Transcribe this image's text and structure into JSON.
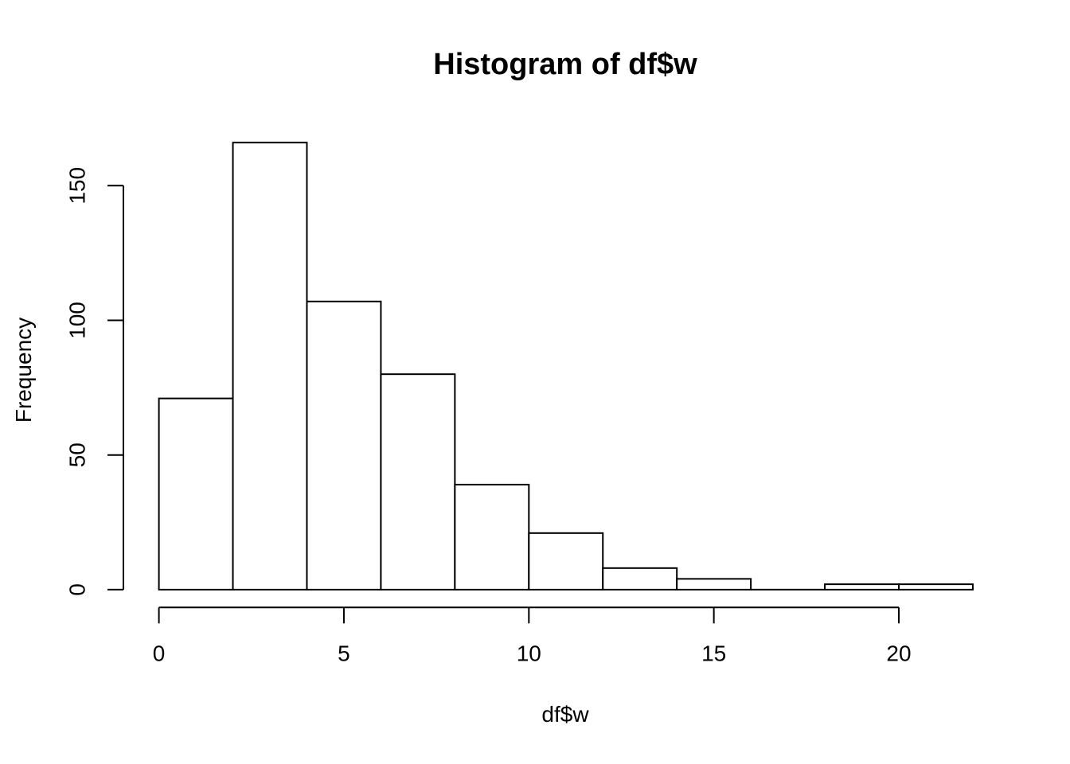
{
  "title": "Histogram of df$w",
  "chart_data": {
    "type": "bar",
    "subtype": "histogram",
    "title": "Histogram of df$w",
    "xlabel": "df$w",
    "ylabel": "Frequency",
    "bin_width": 2,
    "bin_edges": [
      0,
      2,
      4,
      6,
      8,
      10,
      12,
      14,
      16,
      18,
      20,
      22
    ],
    "categories": [
      "0-2",
      "2-4",
      "4-6",
      "6-8",
      "8-10",
      "10-12",
      "12-14",
      "14-16",
      "16-18",
      "18-20",
      "20-22"
    ],
    "values": [
      71,
      166,
      107,
      80,
      39,
      21,
      8,
      4,
      0,
      2,
      2
    ],
    "x_ticks": [
      0,
      5,
      10,
      15,
      20
    ],
    "y_ticks": [
      0,
      50,
      100,
      150
    ],
    "xlim": [
      0,
      22
    ],
    "ylim": [
      0,
      166
    ],
    "grid": false,
    "legend": "none",
    "bar_fill": "#ffffff",
    "line_color": "#000000",
    "background": "#ffffff"
  }
}
